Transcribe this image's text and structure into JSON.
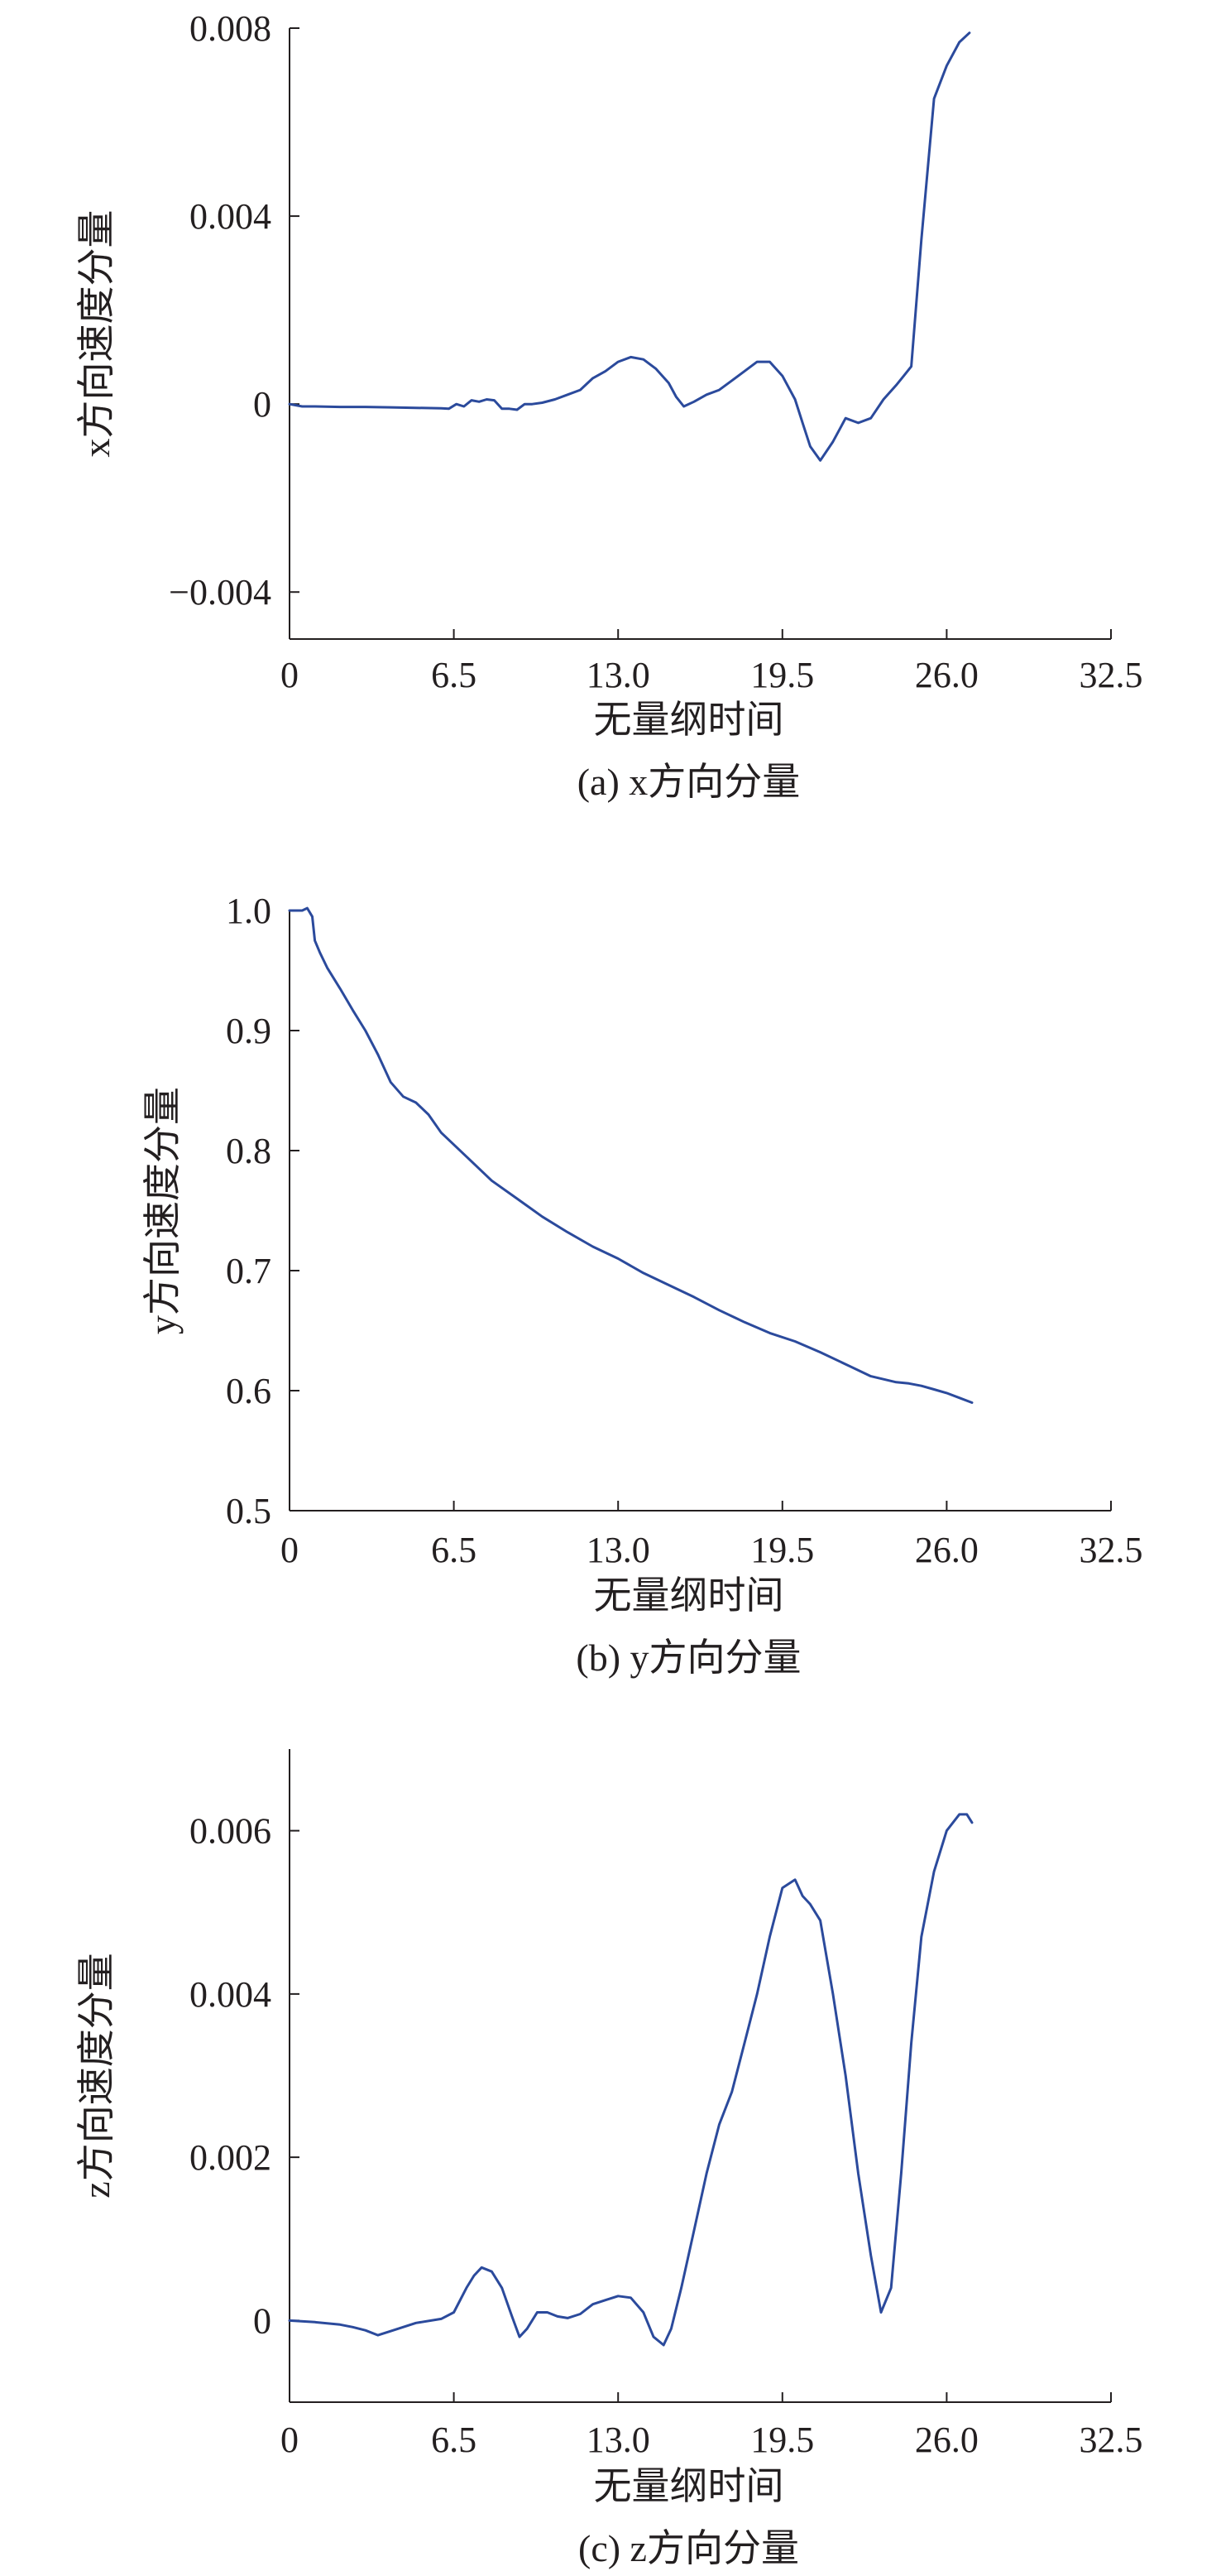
{
  "chart_data": [
    {
      "type": "line",
      "caption": "(a) x方向分量",
      "xlabel": "无量纲时间",
      "ylabel": "x方向速度分量",
      "xlim": [
        0,
        32.5
      ],
      "ylim": [
        -0.005,
        0.008
      ],
      "xticks": [
        0,
        6.5,
        13.0,
        19.5,
        26.0,
        32.5
      ],
      "xtick_labels": [
        "0",
        "6.5",
        "13.0",
        "19.5",
        "26.0",
        "32.5"
      ],
      "yticks": [
        -0.004,
        0,
        0.004,
        0.008
      ],
      "ytick_labels": [
        "−0.004",
        "0",
        "0.004",
        "0.008"
      ],
      "color": "#2b4a9c",
      "series": [
        {
          "x": [
            0,
            0.5,
            1.0,
            2.0,
            3.0,
            4.0,
            5.0,
            6.0,
            6.3,
            6.6,
            6.9,
            7.2,
            7.5,
            7.8,
            8.1,
            8.4,
            8.7,
            9.0,
            9.3,
            9.6,
            10.0,
            10.5,
            11.0,
            11.5,
            12.0,
            12.5,
            13.0,
            13.5,
            14.0,
            14.5,
            15.0,
            15.3,
            15.6,
            16.0,
            16.5,
            17.0,
            17.5,
            18.0,
            18.5,
            19.0,
            19.5,
            20.0,
            20.3,
            20.6,
            21.0,
            21.5,
            22.0,
            22.5,
            23.0,
            23.5,
            24.0,
            24.3,
            24.6,
            25.0,
            25.5,
            26.0,
            26.5,
            26.9
          ],
          "y": [
            0,
            -5e-05,
            -5e-05,
            -6e-05,
            -6e-05,
            -7e-05,
            -8e-05,
            -9e-05,
            -0.0001,
            0.0,
            -5e-05,
            8e-05,
            5e-05,
            0.0001,
            8e-05,
            -0.0001,
            -0.0001,
            -0.00012,
            0.0,
            0.0,
            3e-05,
            0.0001,
            0.0002,
            0.0003,
            0.00055,
            0.0007,
            0.0009,
            0.001,
            0.00095,
            0.00075,
            0.00045,
            0.00015,
            -5e-05,
            5e-05,
            0.0002,
            0.0003,
            0.0005,
            0.0007,
            0.0009,
            0.0009,
            0.0006,
            0.0001,
            -0.0004,
            -0.0009,
            -0.0012,
            -0.0008,
            -0.0003,
            -0.0004,
            -0.0003,
            0.0001,
            0.0004,
            0.0006,
            0.0008,
            0.0035,
            0.0065,
            0.0072,
            0.0077,
            0.0079
          ]
        }
      ]
    },
    {
      "type": "line",
      "caption": "(b) y方向分量",
      "xlabel": "无量纲时间",
      "ylabel": "y方向速度分量",
      "xlim": [
        0,
        32.5
      ],
      "ylim": [
        0.5,
        1.0
      ],
      "xticks": [
        0,
        6.5,
        13.0,
        19.5,
        26.0,
        32.5
      ],
      "xtick_labels": [
        "0",
        "6.5",
        "13.0",
        "19.5",
        "26.0",
        "32.5"
      ],
      "yticks": [
        0.5,
        0.6,
        0.7,
        0.8,
        0.9,
        1.0
      ],
      "ytick_labels": [
        "0.5",
        "0.6",
        "0.7",
        "0.8",
        "0.9",
        "1.0"
      ],
      "color": "#2b4a9c",
      "series": [
        {
          "x": [
            0,
            0.3,
            0.5,
            0.7,
            0.9,
            1.0,
            1.2,
            1.5,
            2.0,
            2.5,
            3.0,
            3.5,
            4.0,
            4.5,
            5.0,
            5.5,
            6.0,
            6.5,
            7.0,
            8.0,
            9.0,
            10.0,
            11.0,
            12.0,
            13.0,
            14.0,
            15.0,
            16.0,
            17.0,
            18.0,
            19.0,
            20.0,
            21.0,
            22.0,
            23.0,
            24.0,
            24.5,
            25.0,
            25.5,
            26.0,
            26.5,
            27.0
          ],
          "y": [
            1.0,
            1.0,
            1.0,
            1.002,
            0.995,
            0.975,
            0.965,
            0.952,
            0.935,
            0.917,
            0.9,
            0.88,
            0.857,
            0.845,
            0.84,
            0.83,
            0.815,
            0.805,
            0.795,
            0.775,
            0.76,
            0.745,
            0.732,
            0.72,
            0.71,
            0.698,
            0.688,
            0.678,
            0.667,
            0.657,
            0.648,
            0.641,
            0.632,
            0.622,
            0.612,
            0.607,
            0.606,
            0.604,
            0.601,
            0.598,
            0.594,
            0.59
          ]
        }
      ]
    },
    {
      "type": "line",
      "caption": "(c) z方向分量",
      "xlabel": "无量纲时间",
      "ylabel": "z方向速度分量",
      "xlim": [
        0,
        32.5
      ],
      "ylim": [
        -0.001,
        0.007
      ],
      "xticks": [
        0,
        6.5,
        13.0,
        19.5,
        26.0,
        32.5
      ],
      "xtick_labels": [
        "0",
        "6.5",
        "13.0",
        "19.5",
        "26.0",
        "32.5"
      ],
      "yticks": [
        0,
        0.002,
        0.004,
        0.006
      ],
      "ytick_labels": [
        "0",
        "0.002",
        "0.004",
        "0.006"
      ],
      "color": "#2b4a9c",
      "series": [
        {
          "x": [
            0,
            1.0,
            2.0,
            2.5,
            3.0,
            3.5,
            4.0,
            5.0,
            6.0,
            6.5,
            7.0,
            7.3,
            7.6,
            8.0,
            8.4,
            8.8,
            9.1,
            9.4,
            9.8,
            10.2,
            10.6,
            11.0,
            11.5,
            12.0,
            12.5,
            13.0,
            13.5,
            14.0,
            14.4,
            14.8,
            15.1,
            15.5,
            16.0,
            16.5,
            17.0,
            17.5,
            18.0,
            18.5,
            19.0,
            19.5,
            20.0,
            20.3,
            20.6,
            21.0,
            21.5,
            22.0,
            22.5,
            23.0,
            23.4,
            23.8,
            24.2,
            24.6,
            25.0,
            25.5,
            26.0,
            26.5,
            26.8,
            27.0
          ],
          "y": [
            0,
            -2e-05,
            -5e-05,
            -8e-05,
            -0.00012,
            -0.00018,
            -0.00013,
            -3e-05,
            2e-05,
            0.0001,
            0.0004,
            0.00055,
            0.00065,
            0.0006,
            0.0004,
            5e-05,
            -0.0002,
            -0.0001,
            0.0001,
            0.0001,
            5e-05,
            3e-05,
            8e-05,
            0.0002,
            0.00025,
            0.0003,
            0.00028,
            0.0001,
            -0.0002,
            -0.0003,
            -0.0001,
            0.0004,
            0.0011,
            0.0018,
            0.0024,
            0.0028,
            0.0034,
            0.004,
            0.0047,
            0.0053,
            0.0054,
            0.0052,
            0.0051,
            0.0049,
            0.004,
            0.003,
            0.0018,
            0.0008,
            0.0001,
            0.0004,
            0.0018,
            0.0034,
            0.0047,
            0.0055,
            0.006,
            0.0062,
            0.0062,
            0.0061
          ]
        }
      ]
    }
  ]
}
